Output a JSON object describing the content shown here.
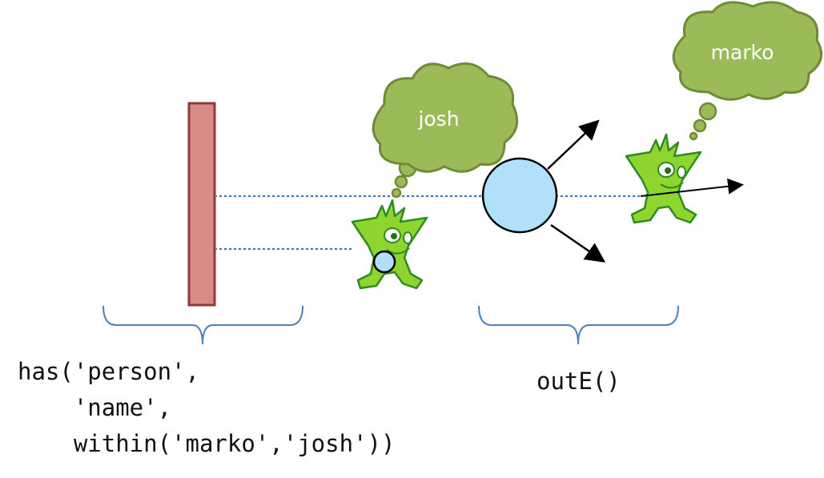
{
  "steps": {
    "has": {
      "lines": [
        "has('person',",
        "    'name',",
        "    within('marko','josh'))"
      ]
    },
    "outE": {
      "label": "outE()"
    }
  },
  "thoughts": {
    "josh": "josh",
    "marko": "marko"
  },
  "colors": {
    "filter_bar": "#d88c88",
    "filter_bar_border": "#8f3a36",
    "vertex": "#b0e0fc",
    "cloud": "#9bbb59",
    "cloud_border": "#6f8b36",
    "gremlin": "#8fd530",
    "brace": "#4f81bd",
    "dotted_line": "#3a6fc0"
  },
  "icons": [
    "gremlin-character",
    "thought-cloud",
    "arrow"
  ]
}
